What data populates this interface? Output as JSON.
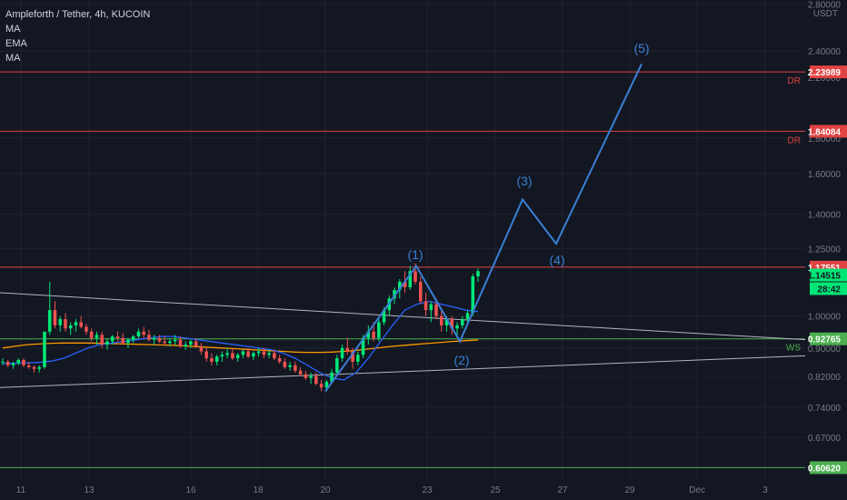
{
  "window": {
    "symbol_title": "Ampleforth / Tether, 4h, KUCOIN",
    "indicators": [
      "MA",
      "EMA",
      "MA"
    ],
    "axis_unit": "USDT"
  },
  "colors": {
    "background": "#131722",
    "grid": "#1e222d",
    "axis_text": "#787b86",
    "bull": "#26a69a",
    "bull_bright": "#00e676",
    "bear": "#ef5350",
    "wave": "#3a7fd5",
    "resistance": "#e04343",
    "support": "#4caf50",
    "trendline": "#b2b5be",
    "ma_blue": "#2962ff",
    "ma_orange": "#ff9800"
  },
  "chart_data": {
    "type": "candlestick",
    "y_scale": "log",
    "ylim": [
      0.582,
      2.84
    ],
    "y_ticks": [
      "2.80000",
      "2.40000",
      "2.20000",
      "1.80000",
      "1.60000",
      "1.40000",
      "1.25000",
      "1.00000",
      "0.90000",
      "0.82000",
      "0.74000",
      "0.67000"
    ],
    "x_ticks": [
      "11",
      "13",
      "16",
      "18",
      "20",
      "23",
      "25",
      "27",
      "29",
      "Dec",
      "3"
    ],
    "price_tags": [
      {
        "label": "2.23989",
        "value": 2.23989,
        "style": "resistance"
      },
      {
        "label": "1.84084",
        "value": 1.84084,
        "style": "resistance"
      },
      {
        "label": "1.17551",
        "value": 1.17551,
        "style": "resistance"
      },
      {
        "label": "1.14515",
        "value": 1.14515,
        "style": "current"
      },
      {
        "label": "28:42",
        "value": 1.095,
        "style": "countdown"
      },
      {
        "label": "0.92765",
        "value": 0.92765,
        "style": "support"
      },
      {
        "label": "0.60620",
        "value": 0.6062,
        "style": "support"
      }
    ],
    "horizontal_levels": [
      {
        "value": 2.23989,
        "label": "DR",
        "style": "resistance"
      },
      {
        "value": 1.84084,
        "label": "DR",
        "style": "resistance"
      },
      {
        "value": 1.17551,
        "label": "",
        "style": "resistance"
      },
      {
        "value": 0.92765,
        "label": "WS",
        "style": "support"
      },
      {
        "value": 0.6062,
        "label": "",
        "style": "support"
      }
    ],
    "wave_labels": [
      "(1)",
      "(2)",
      "(3)",
      "(4)",
      "(5)"
    ],
    "candles_ohlc": [
      [
        0.86,
        0.87,
        0.85,
        0.86
      ],
      [
        0.86,
        0.865,
        0.845,
        0.85
      ],
      [
        0.85,
        0.86,
        0.84,
        0.855
      ],
      [
        0.855,
        0.87,
        0.85,
        0.865
      ],
      [
        0.865,
        0.87,
        0.845,
        0.85
      ],
      [
        0.85,
        0.86,
        0.84,
        0.845
      ],
      [
        0.845,
        0.85,
        0.83,
        0.84
      ],
      [
        0.84,
        0.85,
        0.83,
        0.845
      ],
      [
        0.845,
        0.9,
        0.84,
        0.95
      ],
      [
        0.95,
        1.12,
        0.94,
        1.02
      ],
      [
        1.02,
        1.05,
        0.96,
        0.97
      ],
      [
        0.97,
        1.0,
        0.95,
        0.99
      ],
      [
        0.99,
        1.01,
        0.95,
        0.96
      ],
      [
        0.96,
        0.98,
        0.94,
        0.97
      ],
      [
        0.97,
        0.99,
        0.95,
        0.98
      ],
      [
        0.98,
        1.0,
        0.96,
        0.965
      ],
      [
        0.965,
        0.975,
        0.94,
        0.95
      ],
      [
        0.95,
        0.96,
        0.92,
        0.93
      ],
      [
        0.93,
        0.95,
        0.91,
        0.94
      ],
      [
        0.94,
        0.95,
        0.9,
        0.91
      ],
      [
        0.91,
        0.93,
        0.895,
        0.92
      ],
      [
        0.92,
        0.94,
        0.91,
        0.935
      ],
      [
        0.935,
        0.95,
        0.92,
        0.93
      ],
      [
        0.93,
        0.945,
        0.91,
        0.915
      ],
      [
        0.915,
        0.93,
        0.9,
        0.925
      ],
      [
        0.925,
        0.94,
        0.915,
        0.935
      ],
      [
        0.935,
        0.96,
        0.93,
        0.95
      ],
      [
        0.95,
        0.965,
        0.93,
        0.94
      ],
      [
        0.94,
        0.955,
        0.92,
        0.925
      ],
      [
        0.925,
        0.94,
        0.91,
        0.93
      ],
      [
        0.93,
        0.94,
        0.915,
        0.92
      ],
      [
        0.92,
        0.935,
        0.91,
        0.915
      ],
      [
        0.915,
        0.93,
        0.905,
        0.92
      ],
      [
        0.92,
        0.94,
        0.91,
        0.925
      ],
      [
        0.925,
        0.935,
        0.9,
        0.905
      ],
      [
        0.905,
        0.92,
        0.895,
        0.91
      ],
      [
        0.91,
        0.925,
        0.9,
        0.92
      ],
      [
        0.92,
        0.93,
        0.9,
        0.905
      ],
      [
        0.905,
        0.915,
        0.88,
        0.89
      ],
      [
        0.89,
        0.9,
        0.86,
        0.87
      ],
      [
        0.87,
        0.885,
        0.85,
        0.86
      ],
      [
        0.86,
        0.88,
        0.85,
        0.875
      ],
      [
        0.875,
        0.89,
        0.86,
        0.88
      ],
      [
        0.88,
        0.9,
        0.87,
        0.885
      ],
      [
        0.885,
        0.9,
        0.865,
        0.87
      ],
      [
        0.87,
        0.885,
        0.86,
        0.88
      ],
      [
        0.88,
        0.895,
        0.87,
        0.89
      ],
      [
        0.89,
        0.9,
        0.87,
        0.875
      ],
      [
        0.875,
        0.89,
        0.865,
        0.885
      ],
      [
        0.885,
        0.9,
        0.875,
        0.89
      ],
      [
        0.89,
        0.9,
        0.87,
        0.88
      ],
      [
        0.88,
        0.895,
        0.87,
        0.885
      ],
      [
        0.885,
        0.895,
        0.865,
        0.87
      ],
      [
        0.87,
        0.88,
        0.855,
        0.86
      ],
      [
        0.86,
        0.87,
        0.84,
        0.845
      ],
      [
        0.845,
        0.86,
        0.835,
        0.85
      ],
      [
        0.85,
        0.86,
        0.83,
        0.835
      ],
      [
        0.835,
        0.845,
        0.82,
        0.825
      ],
      [
        0.825,
        0.835,
        0.81,
        0.815
      ],
      [
        0.815,
        0.83,
        0.8,
        0.82
      ],
      [
        0.82,
        0.83,
        0.795,
        0.8
      ],
      [
        0.8,
        0.81,
        0.78,
        0.79
      ],
      [
        0.79,
        0.81,
        0.78,
        0.805
      ],
      [
        0.805,
        0.84,
        0.8,
        0.83
      ],
      [
        0.83,
        0.88,
        0.825,
        0.87
      ],
      [
        0.87,
        0.91,
        0.86,
        0.9
      ],
      [
        0.9,
        0.93,
        0.88,
        0.89
      ],
      [
        0.89,
        0.9,
        0.84,
        0.86
      ],
      [
        0.86,
        0.89,
        0.85,
        0.88
      ],
      [
        0.88,
        0.94,
        0.87,
        0.93
      ],
      [
        0.93,
        0.97,
        0.91,
        0.95
      ],
      [
        0.95,
        0.98,
        0.92,
        0.93
      ],
      [
        0.93,
        0.99,
        0.92,
        0.98
      ],
      [
        0.98,
        1.03,
        0.97,
        1.02
      ],
      [
        1.02,
        1.07,
        1.0,
        1.06
      ],
      [
        1.06,
        1.1,
        1.04,
        1.09
      ],
      [
        1.09,
        1.13,
        1.06,
        1.12
      ],
      [
        1.12,
        1.16,
        1.08,
        1.1
      ],
      [
        1.1,
        1.18,
        1.09,
        1.16
      ],
      [
        1.16,
        1.19,
        1.11,
        1.12
      ],
      [
        1.12,
        1.14,
        1.04,
        1.05
      ],
      [
        1.05,
        1.08,
        1.0,
        1.02
      ],
      [
        1.02,
        1.05,
        0.98,
        1.04
      ],
      [
        1.04,
        1.06,
        0.99,
        1.0
      ],
      [
        1.0,
        1.02,
        0.95,
        0.97
      ],
      [
        0.97,
        1.0,
        0.95,
        0.99
      ],
      [
        0.99,
        1.0,
        0.94,
        0.96
      ],
      [
        0.96,
        0.98,
        0.93,
        0.97
      ],
      [
        0.97,
        1.0,
        0.96,
        0.99
      ],
      [
        0.99,
        1.02,
        0.98,
        1.01
      ],
      [
        1.01,
        1.15,
        1.0,
        1.14
      ],
      [
        1.14,
        1.17,
        1.12,
        1.16
      ]
    ],
    "ma_blue": [
      0.855,
      0.856,
      0.857,
      0.858,
      0.862,
      0.87,
      0.885,
      0.9,
      0.91,
      0.915,
      0.92,
      0.925,
      0.93,
      0.935,
      0.935,
      0.93,
      0.925,
      0.92,
      0.915,
      0.91,
      0.905,
      0.9,
      0.895,
      0.885,
      0.87,
      0.85,
      0.83,
      0.815,
      0.81,
      0.83,
      0.87,
      0.92,
      0.97,
      1.02,
      1.04,
      1.05,
      1.04,
      1.03,
      1.02,
      1.015
    ],
    "ma_orange": [
      0.9,
      0.905,
      0.91,
      0.912,
      0.914,
      0.915,
      0.915,
      0.915,
      0.914,
      0.913,
      0.912,
      0.911,
      0.91,
      0.909,
      0.908,
      0.906,
      0.904,
      0.902,
      0.9,
      0.898,
      0.896,
      0.894,
      0.892,
      0.89,
      0.888,
      0.887,
      0.887,
      0.888,
      0.89,
      0.893,
      0.897,
      0.901,
      0.905,
      0.908,
      0.911,
      0.914,
      0.917,
      0.92,
      0.922,
      0.924
    ]
  }
}
